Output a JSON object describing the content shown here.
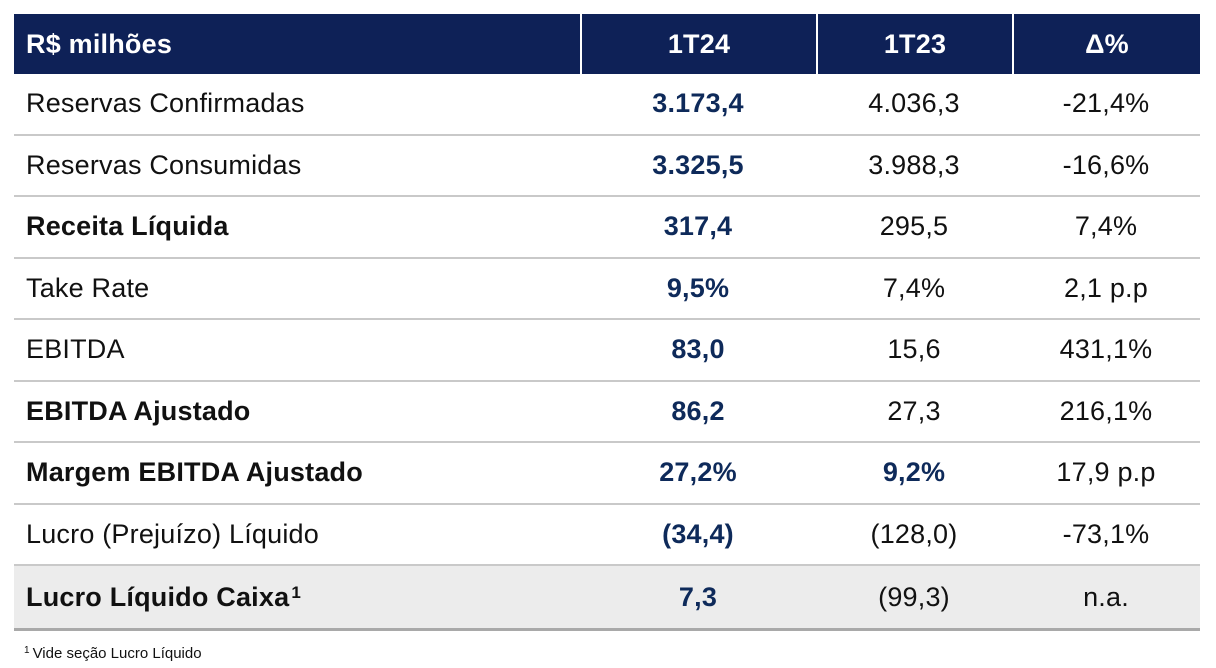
{
  "header": {
    "label": "R$ milhões",
    "col1": "1T24",
    "col2": "1T23",
    "col3": "Δ%"
  },
  "rows": [
    {
      "label": "Reservas Confirmadas",
      "v1": "3.173,4",
      "v2": "4.036,3",
      "v3": "-21,4%"
    },
    {
      "label": "Reservas Consumidas",
      "v1": "3.325,5",
      "v2": "3.988,3",
      "v3": "-16,6%"
    },
    {
      "label": "Receita Líquida",
      "v1": "317,4",
      "v2": "295,5",
      "v3": "7,4%"
    },
    {
      "label": "Take Rate",
      "v1": "9,5%",
      "v2": "7,4%",
      "v3": "2,1 p.p"
    },
    {
      "label": "EBITDA",
      "v1": "83,0",
      "v2": "15,6",
      "v3": "431,1%"
    },
    {
      "label": "EBITDA Ajustado",
      "v1": "86,2",
      "v2": "27,3",
      "v3": "216,1%"
    },
    {
      "label": "Margem EBITDA Ajustado",
      "v1": "27,2%",
      "v2": "9,2%",
      "v3": "17,9 p.p"
    },
    {
      "label": "Lucro (Prejuízo) Líquido",
      "v1": "(34,4)",
      "v2": "(128,0)",
      "v3": "-73,1%"
    },
    {
      "label": "Lucro Líquido Caixa",
      "label_sup": "1",
      "v1": "7,3",
      "v2": "(99,3)",
      "v3": "n.a."
    }
  ],
  "footnote": {
    "mark": "1",
    "text": "Vide seção Lucro Líquido"
  }
}
